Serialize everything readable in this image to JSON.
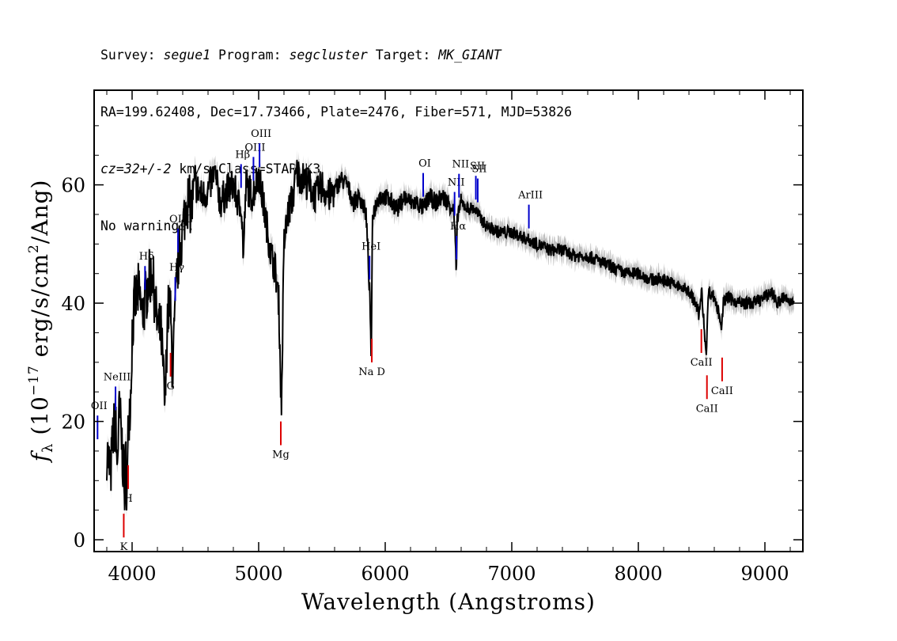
{
  "header": {
    "survey_label": "Survey:",
    "survey": "segue1",
    "program_label": "Program:",
    "program": "segcluster",
    "target_label": "Target:",
    "target": "MK_GIANT",
    "line2": "RA=199.62408, Dec=17.73466, Plate=2476, Fiber=571, MJD=53826",
    "cz": "cz=32+/-2",
    "cz_rest": " km/s Class=STAR K3",
    "warnings": "No warnings."
  },
  "chart_data": {
    "type": "line",
    "xlabel": "Wavelength (Angstroms)",
    "ylabel": "f_λ (10^-17 erg/s/cm^2/Ang)",
    "xlim": [
      3700,
      9300
    ],
    "ylim": [
      -2,
      76
    ],
    "xticks": [
      4000,
      5000,
      6000,
      7000,
      8000,
      9000
    ],
    "yticks": [
      0,
      20,
      40,
      60
    ],
    "grid": false,
    "series": [
      {
        "role": "flux",
        "color": "#000000",
        "x": [
          3800,
          3830,
          3850,
          3870,
          3880,
          3900,
          3920,
          3940,
          3950,
          3960,
          3970,
          3990,
          4000,
          4020,
          4050,
          4080,
          4100,
          4130,
          4160,
          4200,
          4230,
          4260,
          4280,
          4300,
          4320,
          4340,
          4360,
          4380,
          4400,
          4430,
          4470,
          4500,
          4550,
          4600,
          4650,
          4700,
          4750,
          4800,
          4850,
          4860,
          4880,
          4900,
          4950,
          5000,
          5050,
          5100,
          5130,
          5160,
          5170,
          5180,
          5190,
          5200,
          5230,
          5270,
          5300,
          5350,
          5400,
          5450,
          5500,
          5550,
          5600,
          5650,
          5700,
          5750,
          5800,
          5850,
          5880,
          5890,
          5900,
          5950,
          6000,
          6050,
          6100,
          6150,
          6200,
          6250,
          6300,
          6350,
          6400,
          6450,
          6500,
          6540,
          6555,
          6562,
          6570,
          6600,
          6650,
          6700,
          6800,
          6900,
          7000,
          7100,
          7200,
          7300,
          7400,
          7500,
          7600,
          7700,
          7800,
          7900,
          8000,
          8100,
          8200,
          8300,
          8400,
          8450,
          8480,
          8500,
          8530,
          8540,
          8550,
          8560,
          8600,
          8640,
          8660,
          8670,
          8700,
          8800,
          8900,
          9000,
          9050,
          9100,
          9150,
          9200,
          9230
        ],
        "y": [
          15,
          11,
          18,
          20,
          12,
          22,
          16,
          8,
          14,
          6,
          20,
          25,
          35,
          40,
          42,
          38,
          40,
          44,
          45,
          36,
          35,
          22,
          38,
          40,
          28,
          38,
          46,
          50,
          52,
          58,
          56,
          60,
          58,
          59,
          62,
          57,
          59,
          60,
          56,
          58,
          48,
          60,
          58,
          62,
          55,
          48,
          46,
          40,
          30,
          22,
          36,
          50,
          55,
          58,
          62,
          61,
          60,
          58,
          60,
          58,
          59,
          61,
          60,
          57,
          58,
          55,
          40,
          30,
          55,
          58,
          58,
          57,
          56,
          58,
          57,
          57,
          56,
          58,
          57,
          58,
          57,
          56,
          50,
          44,
          55,
          57,
          56,
          56,
          53,
          52,
          52,
          51,
          50,
          49,
          49,
          48,
          48,
          47,
          46,
          45,
          45,
          44,
          44,
          43,
          42,
          40,
          38,
          42,
          33,
          32,
          41,
          42,
          41,
          38,
          36,
          40,
          41,
          40,
          40,
          41,
          42,
          40,
          41,
          40,
          41
        ]
      },
      {
        "role": "error-band",
        "color": "#bfbfbf"
      }
    ],
    "annotations": {
      "emission": [
        {
          "label": "OII",
          "wavelength": 3727
        },
        {
          "label": "NeIII",
          "wavelength": 3869
        },
        {
          "label": "Hδ",
          "wavelength": 4102
        },
        {
          "label": "Hγ",
          "wavelength": 4341
        },
        {
          "label": "OIII",
          "wavelength": 4363
        },
        {
          "label": "Hβ",
          "wavelength": 4861
        },
        {
          "label": "OIII",
          "wavelength": 4959
        },
        {
          "label": "OIII",
          "wavelength": 5007
        },
        {
          "label": "HeI",
          "wavelength": 5876
        },
        {
          "label": "OI",
          "wavelength": 6300
        },
        {
          "label": "NII",
          "wavelength": 6548
        },
        {
          "label": "Hα",
          "wavelength": 6563
        },
        {
          "label": "NII",
          "wavelength": 6583
        },
        {
          "label": "SII",
          "wavelength": 6716
        },
        {
          "label": "SII",
          "wavelength": 6731
        },
        {
          "label": "ArIII",
          "wavelength": 7135
        }
      ],
      "absorption": [
        {
          "label": "K",
          "wavelength": 3934
        },
        {
          "label": "H",
          "wavelength": 3969
        },
        {
          "label": "G",
          "wavelength": 4304
        },
        {
          "label": "Mg",
          "wavelength": 5175
        },
        {
          "label": "Na D",
          "wavelength": 5894
        },
        {
          "label": "CaII",
          "wavelength": 8498
        },
        {
          "label": "CaII",
          "wavelength": 8542
        },
        {
          "label": "CaII",
          "wavelength": 8662
        }
      ]
    }
  },
  "colors": {
    "flux": "#000000",
    "error_band": "#bfbfbf",
    "emission_marker": "#0000cc",
    "absorption_marker": "#dd0000"
  }
}
